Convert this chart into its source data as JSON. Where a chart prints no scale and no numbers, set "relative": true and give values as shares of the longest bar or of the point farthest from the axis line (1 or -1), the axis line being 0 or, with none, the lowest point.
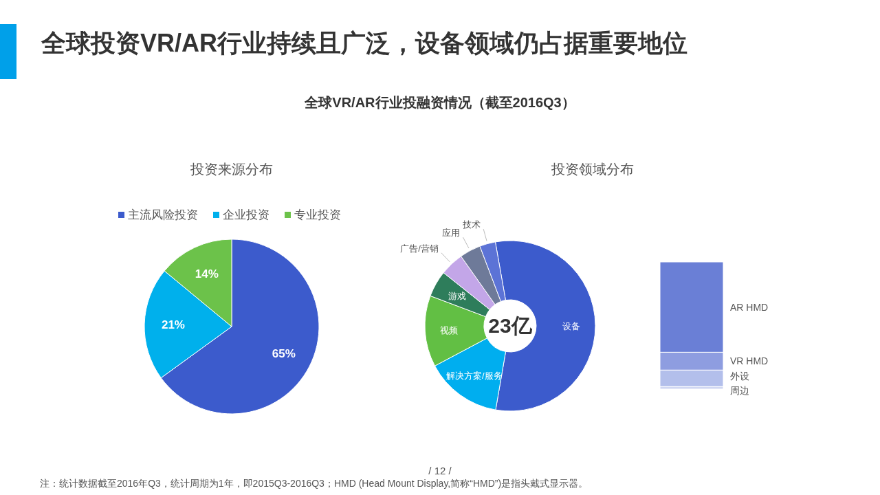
{
  "chart_data": [
    {
      "type": "pie",
      "title": "投资来源分布",
      "categories": [
        "主流风险投资",
        "企业投资",
        "专业投资"
      ],
      "values": [
        65,
        21,
        14
      ],
      "colors": [
        "#3c5bcc",
        "#00b0ec",
        "#6cc24a"
      ],
      "value_labels": [
        "65%",
        "21%",
        "14%"
      ],
      "legend": "top",
      "annotations": [
        "全球投资VR/AR行业持续且广泛，设备领域仍占据重要地位",
        "全球VR/AR行业投融资情况（截至2016Q3）",
        "注：统计数据截至2016年Q3，统计周期为1年，即2015Q3-2016Q3；HMD (Head Mount Display,简称“HMD”)是指头戴式显示器。",
        "/ 12 /"
      ]
    },
    {
      "type": "donut",
      "title": "投资领域分布",
      "categories": [
        "设备",
        "解决方案/服务",
        "视频",
        "游戏",
        "广告/营销",
        "应用",
        "技术"
      ],
      "values": [
        55.5,
        14.5,
        13.5,
        5,
        4.5,
        4,
        3
      ],
      "colors": [
        "#3c5bcc",
        "#00aeef",
        "#62bf44",
        "#2e7d5b",
        "#c3a6e8",
        "#6e7a99",
        "#5c73d6"
      ],
      "annotations": [
        "23亿"
      ]
    },
    {
      "type": "bar",
      "stacked": true,
      "relative": true,
      "categories": [
        null
      ],
      "series": [
        {
          "name": "周边",
          "color": "#d0d7f2",
          "values": [
            0.02
          ]
        },
        {
          "name": "外设",
          "color": "#b3bfeb",
          "values": [
            0.13
          ]
        },
        {
          "name": "VR HMD",
          "color": "#8e9de0",
          "values": [
            0.14
          ]
        },
        {
          "name": "AR HMD",
          "color": "#6a7fd6",
          "values": [
            0.71
          ]
        }
      ]
    }
  ]
}
